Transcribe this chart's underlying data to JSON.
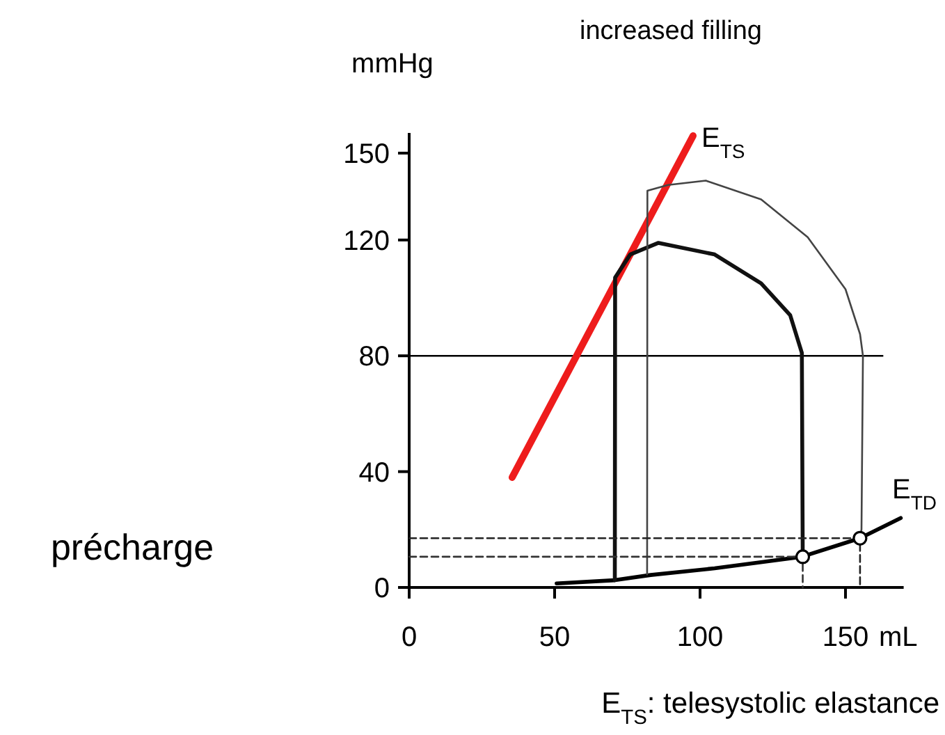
{
  "chart_data": {
    "type": "line",
    "title": "increased filling",
    "ylabel": "mmHg",
    "xlabel": "mL",
    "xlim": [
      0,
      170
    ],
    "ylim": [
      0,
      157
    ],
    "xticks": [
      0,
      50,
      100,
      150
    ],
    "yticks": [
      0,
      40,
      80,
      120,
      150
    ],
    "grid": false,
    "series": [
      {
        "name": "E$_{TS}$",
        "color": "#ee1c1c",
        "x": [
          35.4,
          97.6
        ],
        "values": [
          38,
          156
        ]
      },
      {
        "name": "E$_{TD}$",
        "color": "#000000",
        "x": [
          50.7,
          70.7,
          83,
          105,
          135,
          155,
          169
        ],
        "values": [
          1.4,
          2.5,
          4.3,
          6.6,
          10.6,
          17,
          24
        ]
      },
      {
        "color": "#111111",
        "x": [
          70.7,
          70.8,
          76,
          85.7,
          105,
          121,
          131,
          135,
          135.3
        ],
        "values": [
          2.5,
          107,
          115,
          119,
          115,
          105,
          94,
          81,
          10.6
        ]
      },
      {
        "color": "#444444",
        "x": [
          81.8,
          81.9,
          89,
          102,
          121,
          137,
          150,
          155,
          156,
          155.5,
          155
        ],
        "values": [
          4.5,
          137,
          139,
          140.5,
          134,
          121,
          103,
          87.5,
          80,
          20,
          17
        ]
      },
      {
        "color": "#222222",
        "line_style": "dashed",
        "x": [
          0,
          155,
          155
        ],
        "values": [
          17,
          17,
          0
        ]
      },
      {
        "color": "#333333",
        "line_style": "dashed",
        "x": [
          0,
          135.3,
          135.3
        ],
        "values": [
          10.6,
          10.6,
          0
        ]
      },
      {
        "type": "scatter",
        "marker": "circle",
        "color": "#000000",
        "x": [
          135.3,
          155
        ],
        "values": [
          10.6,
          17
        ]
      }
    ],
    "ref_lines": [
      {
        "axis": "y",
        "value": 80,
        "color": "#000000"
      }
    ],
    "annotations": [
      "précharge",
      "E$_{TS}$: telesystolic elastance"
    ]
  }
}
